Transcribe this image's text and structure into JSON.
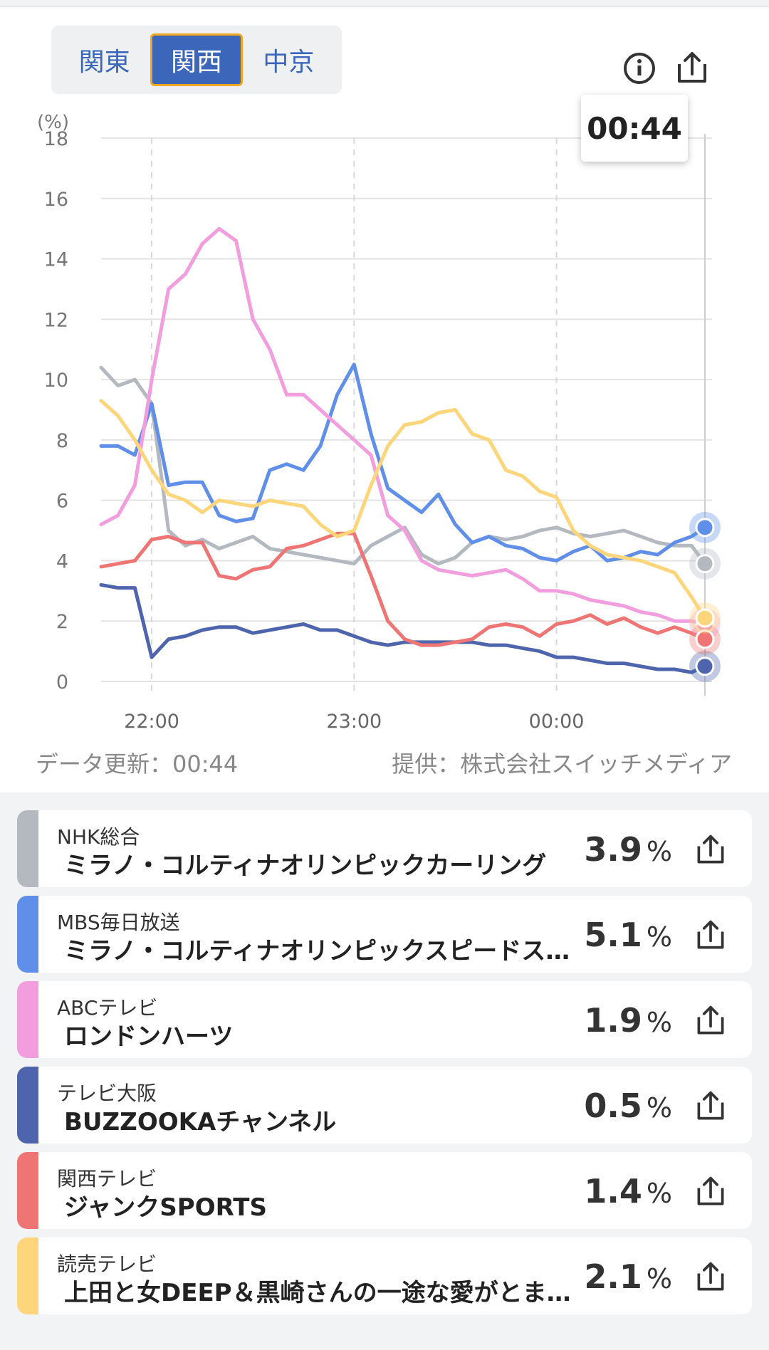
{
  "regions": [
    {
      "label": "関東",
      "active": false
    },
    {
      "label": "関西",
      "active": true
    },
    {
      "label": "中京",
      "active": false
    }
  ],
  "icons": {
    "info": "info-icon",
    "share": "share-icon"
  },
  "current_time": "00:44",
  "footer": {
    "updated": "データ更新：00:44",
    "provider": "提供：株式会社スイッチメディア"
  },
  "chart_data": {
    "type": "line",
    "yunit": "(%)",
    "ylim": [
      0,
      18
    ],
    "yticks": [
      0,
      2,
      4,
      6,
      8,
      10,
      12,
      14,
      16,
      18
    ],
    "xticks": [
      "22:00",
      "23:00",
      "00:00"
    ],
    "x": [
      "21:45",
      "21:50",
      "21:55",
      "22:00",
      "22:05",
      "22:10",
      "22:15",
      "22:20",
      "22:25",
      "22:30",
      "22:35",
      "22:40",
      "22:45",
      "22:50",
      "22:55",
      "23:00",
      "23:05",
      "23:10",
      "23:15",
      "23:20",
      "23:25",
      "23:30",
      "23:35",
      "23:40",
      "23:45",
      "23:50",
      "23:55",
      "00:00",
      "00:05",
      "00:10",
      "00:15",
      "00:20",
      "00:25",
      "00:30",
      "00:35",
      "00:40",
      "00:44"
    ],
    "grid": true,
    "series": [
      {
        "name": "NHK総合",
        "color": "#b4b8bf",
        "values": [
          10.4,
          9.8,
          10.0,
          9.2,
          5.0,
          4.5,
          4.7,
          4.4,
          4.6,
          4.8,
          4.4,
          4.3,
          4.2,
          4.1,
          4.0,
          3.9,
          4.5,
          4.8,
          5.1,
          4.2,
          3.9,
          4.1,
          4.6,
          4.8,
          4.7,
          4.8,
          5.0,
          5.1,
          4.9,
          4.8,
          4.9,
          5.0,
          4.8,
          4.6,
          4.5,
          4.5,
          3.9
        ]
      },
      {
        "name": "MBS毎日放送",
        "color": "#5f8fe8",
        "values": [
          7.8,
          7.8,
          7.5,
          9.2,
          6.5,
          6.6,
          6.6,
          5.5,
          5.3,
          5.4,
          7.0,
          7.2,
          7.0,
          7.8,
          9.5,
          10.5,
          8.2,
          6.4,
          6.0,
          5.6,
          6.2,
          5.2,
          4.6,
          4.8,
          4.5,
          4.4,
          4.1,
          4.0,
          4.3,
          4.5,
          4.0,
          4.1,
          4.3,
          4.2,
          4.6,
          4.8,
          5.1
        ]
      },
      {
        "name": "ABCテレビ",
        "color": "#f29ddd",
        "values": [
          5.2,
          5.5,
          6.5,
          10.0,
          13.0,
          13.5,
          14.5,
          15.0,
          14.6,
          12.0,
          11.0,
          9.5,
          9.5,
          9.0,
          8.5,
          8.0,
          7.5,
          5.5,
          5.0,
          4.0,
          3.7,
          3.6,
          3.5,
          3.6,
          3.7,
          3.4,
          3.0,
          3.0,
          2.9,
          2.7,
          2.6,
          2.5,
          2.3,
          2.2,
          2.0,
          2.0,
          1.9
        ]
      },
      {
        "name": "テレビ大阪",
        "color": "#4e64ad",
        "values": [
          3.2,
          3.1,
          3.1,
          0.8,
          1.4,
          1.5,
          1.7,
          1.8,
          1.8,
          1.6,
          1.7,
          1.8,
          1.9,
          1.7,
          1.7,
          1.5,
          1.3,
          1.2,
          1.3,
          1.3,
          1.3,
          1.3,
          1.3,
          1.2,
          1.2,
          1.1,
          1.0,
          0.8,
          0.8,
          0.7,
          0.6,
          0.6,
          0.5,
          0.4,
          0.4,
          0.3,
          0.5
        ]
      },
      {
        "name": "関西テレビ",
        "color": "#ee7574",
        "values": [
          3.8,
          3.9,
          4.0,
          4.7,
          4.8,
          4.6,
          4.6,
          3.5,
          3.4,
          3.7,
          3.8,
          4.4,
          4.5,
          4.7,
          4.9,
          4.9,
          3.5,
          2.0,
          1.4,
          1.2,
          1.2,
          1.3,
          1.4,
          1.8,
          1.9,
          1.8,
          1.5,
          1.9,
          2.0,
          2.2,
          1.9,
          2.1,
          1.8,
          1.6,
          1.8,
          1.6,
          1.4
        ]
      },
      {
        "name": "読売テレビ",
        "color": "#fdd57a",
        "values": [
          9.3,
          8.8,
          8.0,
          7.0,
          6.2,
          6.0,
          5.6,
          6.0,
          5.9,
          5.8,
          6.0,
          5.9,
          5.8,
          5.2,
          4.8,
          5.0,
          6.5,
          7.8,
          8.5,
          8.6,
          8.9,
          9.0,
          8.2,
          8.0,
          7.0,
          6.8,
          6.3,
          6.1,
          5.0,
          4.5,
          4.2,
          4.1,
          4.0,
          3.8,
          3.6,
          2.8,
          2.1
        ]
      }
    ]
  },
  "rows": [
    {
      "station": "NHK総合",
      "program": "ミラノ・コルティナオリンピックカーリング",
      "value": "3.9",
      "unit": "%",
      "color": "#b4b8bf"
    },
    {
      "station": "MBS毎日放送",
      "program": "ミラノ・コルティナオリンピックスピードスケート",
      "value": "5.1",
      "unit": "%",
      "color": "#5f8fe8"
    },
    {
      "station": "ABCテレビ",
      "program": "ロンドンハーツ",
      "value": "1.9",
      "unit": "%",
      "color": "#f29ddd"
    },
    {
      "station": "テレビ大阪",
      "program": "BUZZOOKAチャンネル",
      "value": "0.5",
      "unit": "%",
      "color": "#4e64ad"
    },
    {
      "station": "関西テレビ",
      "program": "ジャンクSPORTS",
      "value": "1.4",
      "unit": "%",
      "color": "#ee7574"
    },
    {
      "station": "読売テレビ",
      "program": "上田と女DEEP＆黒崎さんの一途な愛がとまらない",
      "value": "2.1",
      "unit": "%",
      "color": "#fdd57a"
    }
  ]
}
